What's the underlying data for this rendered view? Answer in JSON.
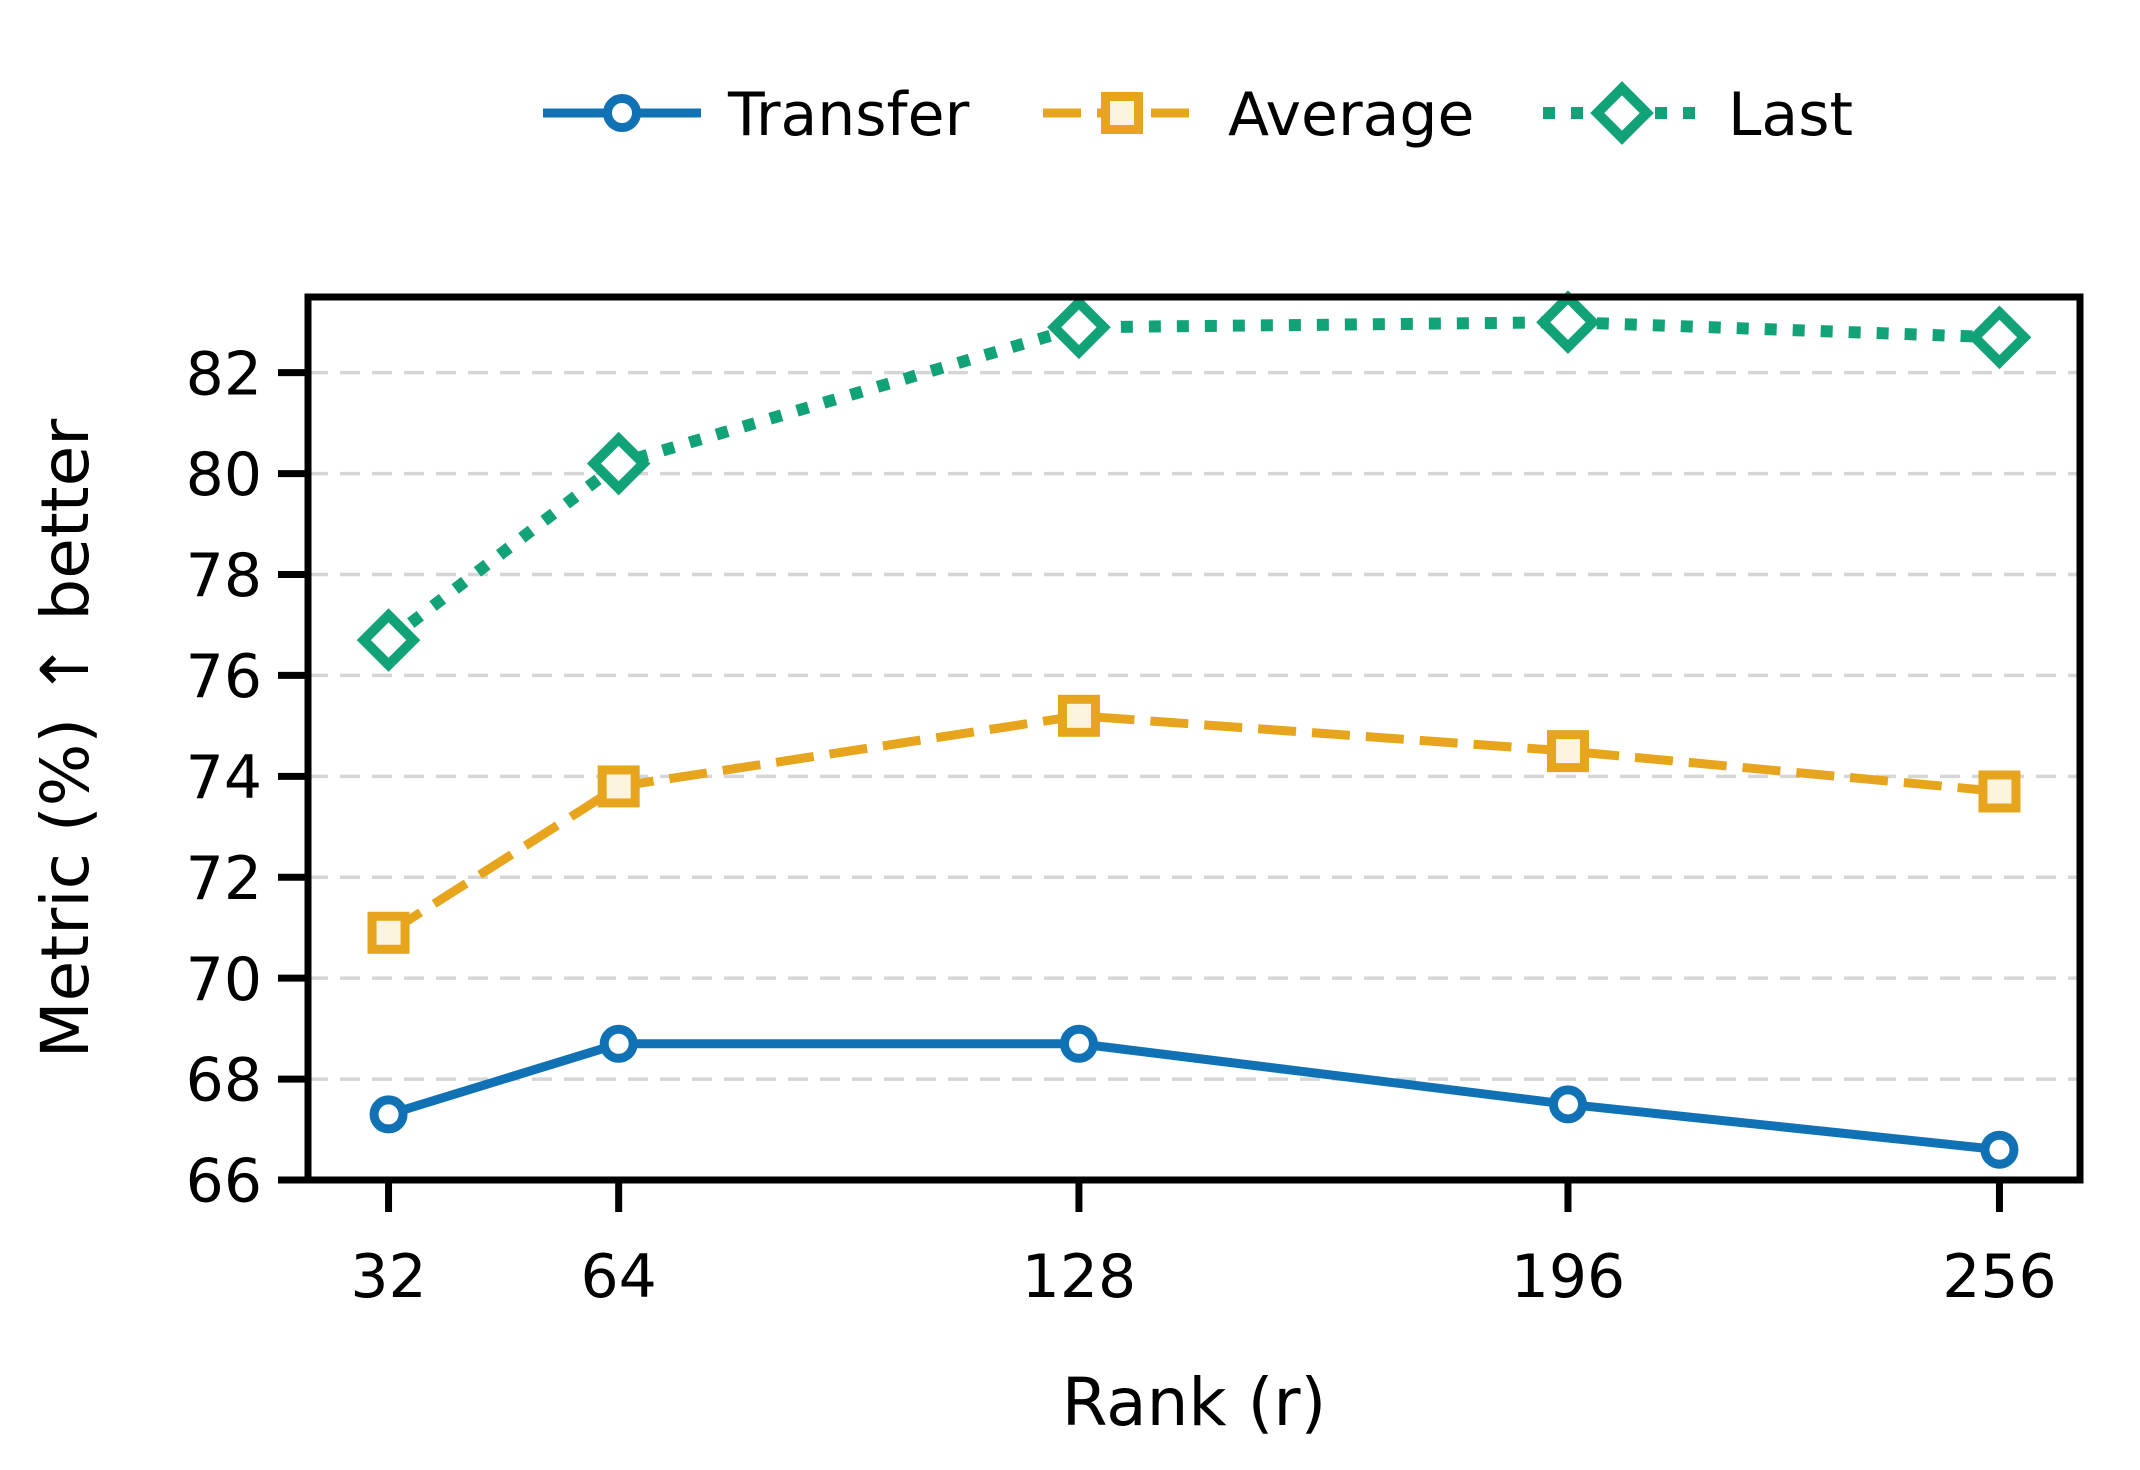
{
  "chart_data": {
    "type": "line",
    "title": "",
    "xlabel": "Rank (r)",
    "ylabel": "Metric (%)  ↑ better",
    "x": [
      32,
      64,
      128,
      196,
      256
    ],
    "x_tick_labels": [
      "32",
      "64",
      "128",
      "196",
      "256"
    ],
    "y_ticks": [
      66,
      68,
      70,
      72,
      74,
      76,
      78,
      80,
      82
    ],
    "xlim": [
      20.8,
      267.2
    ],
    "ylim": [
      66,
      83.5
    ],
    "grid": "horizontal dashed gridlines at each y tick",
    "legend_position": "top outside, horizontal",
    "series": [
      {
        "name": "Transfer",
        "values": [
          67.3,
          68.7,
          68.7,
          67.5,
          66.6
        ],
        "color": "#1072B4",
        "line_style": "solid",
        "marker": "circle",
        "marker_fill": "#ffffff"
      },
      {
        "name": "Average",
        "values": [
          70.9,
          73.8,
          75.2,
          74.5,
          73.7
        ],
        "color": "#E6A51C",
        "line_style": "dashed",
        "marker": "square",
        "marker_fill": "#FCF4DF"
      },
      {
        "name": "Last",
        "values": [
          76.7,
          80.2,
          82.9,
          83.0,
          82.7
        ],
        "color": "#12A278",
        "line_style": "dotted",
        "marker": "diamond",
        "marker_fill": "#ffffff"
      }
    ],
    "colors": {
      "grid": "#D6D6D6",
      "axis": "#000000",
      "text": "#000000",
      "background": "#ffffff"
    }
  }
}
